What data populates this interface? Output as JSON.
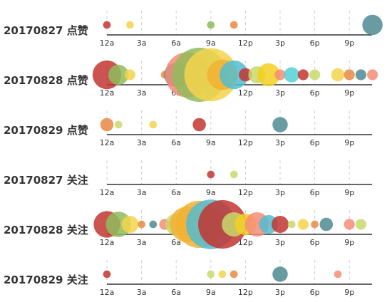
{
  "chart_data": {
    "type": "scatter",
    "title": "",
    "x_axis": {
      "unit": "hour",
      "ticks": [
        "12a",
        "3a",
        "6a",
        "9a",
        "12p",
        "3p",
        "6p",
        "9p"
      ],
      "tick_hours": [
        0,
        3,
        6,
        9,
        12,
        15,
        18,
        21
      ],
      "range": [
        0,
        23
      ]
    },
    "grid": true,
    "palette": [
      "#c23531",
      "#f2b134",
      "#8fbc5a",
      "#e98a44",
      "#54bcd0",
      "#f58c77",
      "#4f8a92",
      "#f4d34c",
      "#c8d96b"
    ],
    "rows": [
      {
        "label": "20170827 点赞",
        "points": [
          {
            "hour": 0,
            "value": 1,
            "color": "#c23531"
          },
          {
            "hour": 2,
            "value": 1,
            "color": "#f4d34c"
          },
          {
            "hour": 9,
            "value": 1,
            "color": "#8fbc5a"
          },
          {
            "hour": 11,
            "value": 1,
            "color": "#e98a44"
          },
          {
            "hour": 23,
            "value": 7,
            "color": "#4f8a92"
          }
        ]
      },
      {
        "label": "20170828 点赞",
        "points": [
          {
            "hour": 0,
            "value": 14,
            "color": "#c23531"
          },
          {
            "hour": 1,
            "value": 7,
            "color": "#8fbc5a"
          },
          {
            "hour": 2,
            "value": 2,
            "color": "#f4d34c"
          },
          {
            "hour": 5,
            "value": 1,
            "color": "#e98a44"
          },
          {
            "hour": 6,
            "value": 10,
            "color": "#4f8a92"
          },
          {
            "hour": 7,
            "value": 35,
            "color": "#f58c77"
          },
          {
            "hour": 8,
            "value": 50,
            "color": "#8fbc5a"
          },
          {
            "hour": 9,
            "value": 48,
            "color": "#f4d34c"
          },
          {
            "hour": 10,
            "value": 16,
            "color": "#f2b134"
          },
          {
            "hour": 11,
            "value": 14,
            "color": "#54bcd0"
          },
          {
            "hour": 12,
            "value": 3,
            "color": "#c23531"
          },
          {
            "hour": 13,
            "value": 5,
            "color": "#c8d96b"
          },
          {
            "hour": 14,
            "value": 9,
            "color": "#f2d021"
          },
          {
            "hour": 15,
            "value": 2,
            "color": "#f58c77"
          },
          {
            "hour": 16,
            "value": 4,
            "color": "#54d0d6"
          },
          {
            "hour": 17,
            "value": 2,
            "color": "#c23531"
          },
          {
            "hour": 18,
            "value": 2,
            "color": "#c8d96b"
          },
          {
            "hour": 20,
            "value": 3,
            "color": "#f4d34c"
          },
          {
            "hour": 21,
            "value": 2,
            "color": "#e98a44"
          },
          {
            "hour": 22,
            "value": 2,
            "color": "#4f8a92"
          },
          {
            "hour": 23,
            "value": 2,
            "color": "#f58c77"
          }
        ]
      },
      {
        "label": "20170829 点赞",
        "points": [
          {
            "hour": 0,
            "value": 3,
            "color": "#e98a44"
          },
          {
            "hour": 1,
            "value": 1,
            "color": "#c8d96b"
          },
          {
            "hour": 4,
            "value": 1,
            "color": "#f4d34c"
          },
          {
            "hour": 8,
            "value": 3,
            "color": "#c23531"
          },
          {
            "hour": 15,
            "value": 4,
            "color": "#4f8a92"
          }
        ]
      },
      {
        "label": "20170827 关注",
        "points": [
          {
            "hour": 9,
            "value": 1,
            "color": "#c23531"
          },
          {
            "hour": 11,
            "value": 1,
            "color": "#c8d96b"
          }
        ]
      },
      {
        "label": "20170828 关注",
        "points": [
          {
            "hour": 0,
            "value": 12,
            "color": "#c23531"
          },
          {
            "hour": 1,
            "value": 11,
            "color": "#8fbc5a"
          },
          {
            "hour": 2,
            "value": 5,
            "color": "#f4d34c"
          },
          {
            "hour": 3,
            "value": 1,
            "color": "#e98a44"
          },
          {
            "hour": 4,
            "value": 1,
            "color": "#4f8a92"
          },
          {
            "hour": 5,
            "value": 2,
            "color": "#f58c77"
          },
          {
            "hour": 6,
            "value": 8,
            "color": "#c8d96b"
          },
          {
            "hour": 7,
            "value": 22,
            "color": "#f2b134"
          },
          {
            "hour": 8,
            "value": 38,
            "color": "#f2b134"
          },
          {
            "hour": 9,
            "value": 42,
            "color": "#54bcd0"
          },
          {
            "hour": 10,
            "value": 40,
            "color": "#c23531"
          },
          {
            "hour": 11,
            "value": 10,
            "color": "#c8d96b"
          },
          {
            "hour": 12,
            "value": 8,
            "color": "#f2d021"
          },
          {
            "hour": 13,
            "value": 10,
            "color": "#f58c77"
          },
          {
            "hour": 14,
            "value": 6,
            "color": "#54bcd0"
          },
          {
            "hour": 15,
            "value": 5,
            "color": "#c23531"
          },
          {
            "hour": 16,
            "value": 1,
            "color": "#c8d96b"
          },
          {
            "hour": 17,
            "value": 2,
            "color": "#f4d34c"
          },
          {
            "hour": 18,
            "value": 1,
            "color": "#e98a44"
          },
          {
            "hour": 19,
            "value": 3,
            "color": "#4f8a92"
          },
          {
            "hour": 21,
            "value": 2,
            "color": "#f58c77"
          },
          {
            "hour": 22,
            "value": 2,
            "color": "#c8d96b"
          }
        ]
      },
      {
        "label": "20170829 关注",
        "points": [
          {
            "hour": 0,
            "value": 1,
            "color": "#c23531"
          },
          {
            "hour": 9,
            "value": 1,
            "color": "#c8d96b"
          },
          {
            "hour": 10,
            "value": 1,
            "color": "#f4d34c"
          },
          {
            "hour": 11,
            "value": 1,
            "color": "#e98a44"
          },
          {
            "hour": 15,
            "value": 4,
            "color": "#4f8a92"
          },
          {
            "hour": 20,
            "value": 1,
            "color": "#f58c77"
          }
        ]
      }
    ]
  }
}
